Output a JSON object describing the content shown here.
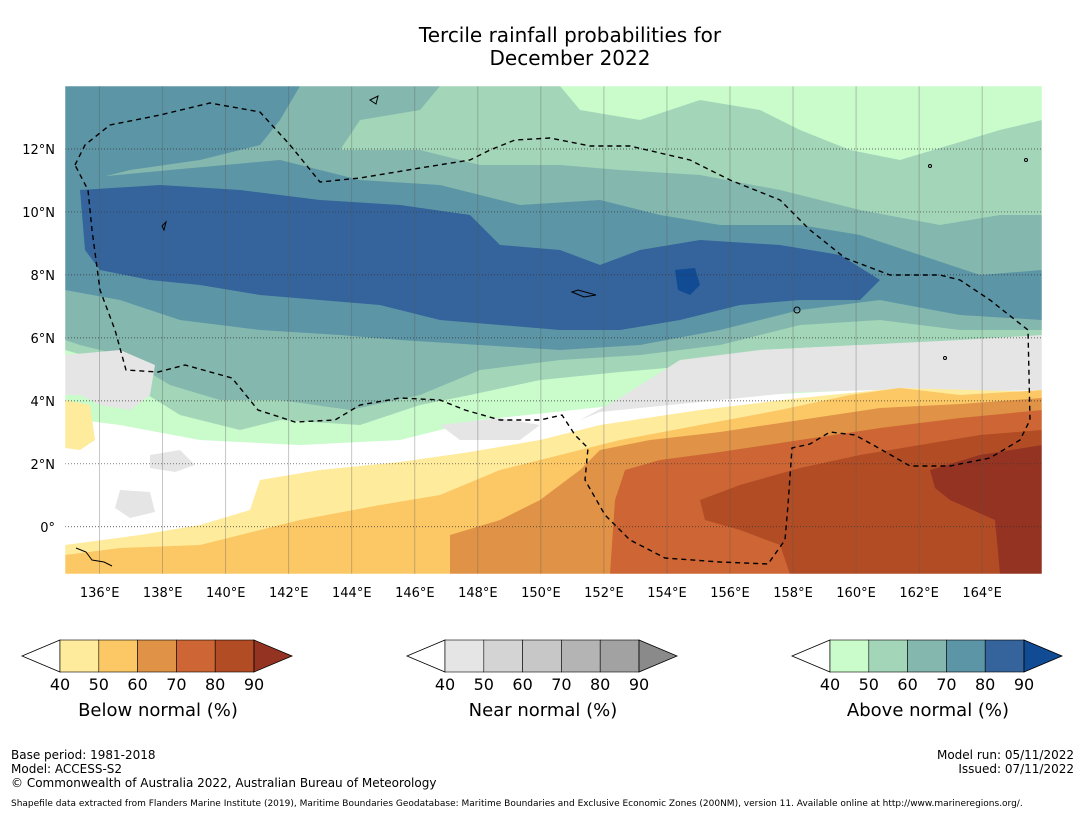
{
  "title": {
    "line1": "Tercile rainfall probabilities for",
    "line2": "December 2022"
  },
  "map": {
    "lon_labels": [
      "136°E",
      "138°E",
      "140°E",
      "142°E",
      "144°E",
      "146°E",
      "148°E",
      "150°E",
      "152°E",
      "154°E",
      "156°E",
      "158°E",
      "160°E",
      "162°E",
      "164°E"
    ],
    "lon_values": [
      136,
      138,
      140,
      142,
      144,
      146,
      148,
      150,
      152,
      154,
      156,
      158,
      160,
      162,
      164
    ],
    "lat_labels": [
      "12°N",
      "10°N",
      "8°N",
      "6°N",
      "4°N",
      "2°N",
      "0°"
    ],
    "lat_values": [
      12,
      10,
      8,
      6,
      4,
      2,
      0
    ],
    "lon_range": [
      134.9,
      165.9
    ],
    "lat_range": [
      -1.5,
      14
    ]
  },
  "colorbars": [
    {
      "name": "below-normal",
      "label": "Below normal (%)",
      "ticks": [
        "40",
        "50",
        "60",
        "70",
        "80",
        "90"
      ],
      "colors": [
        "#ffffff",
        "#feeb9c",
        "#fcc865",
        "#e09346",
        "#cd6634",
        "#b24c25",
        "#943322"
      ]
    },
    {
      "name": "near-normal",
      "label": "Near normal (%)",
      "ticks": [
        "40",
        "50",
        "60",
        "70",
        "80",
        "90"
      ],
      "colors": [
        "#ffffff",
        "#e5e5e5",
        "#d4d4d4",
        "#c7c7c7",
        "#b4b4b4",
        "#a2a2a2",
        "#8a8a8a"
      ]
    },
    {
      "name": "above-normal",
      "label": "Above normal (%)",
      "ticks": [
        "40",
        "50",
        "60",
        "70",
        "80",
        "90"
      ],
      "colors": [
        "#ffffff",
        "#c9fbcb",
        "#a3d5b9",
        "#84b7ad",
        "#5c95a6",
        "#34649b",
        "#104b93"
      ]
    }
  ],
  "footer": {
    "base_period": "Base period: 1981-2018",
    "model": "Model: ACCESS-S2",
    "copyright": "© Commonwealth of Australia 2022, Australian Bureau of Meteorology",
    "model_run": "Model run: 05/11/2022",
    "issued": "Issued: 07/11/2022",
    "shapefile": "Shapefile data extracted from Flanders Marine Institute (2019), Maritime Boundaries Geodatabase: Maritime Boundaries and Exclusive Economic Zones (200NM), version 11. Available online at http://www.marineregions.org/."
  }
}
